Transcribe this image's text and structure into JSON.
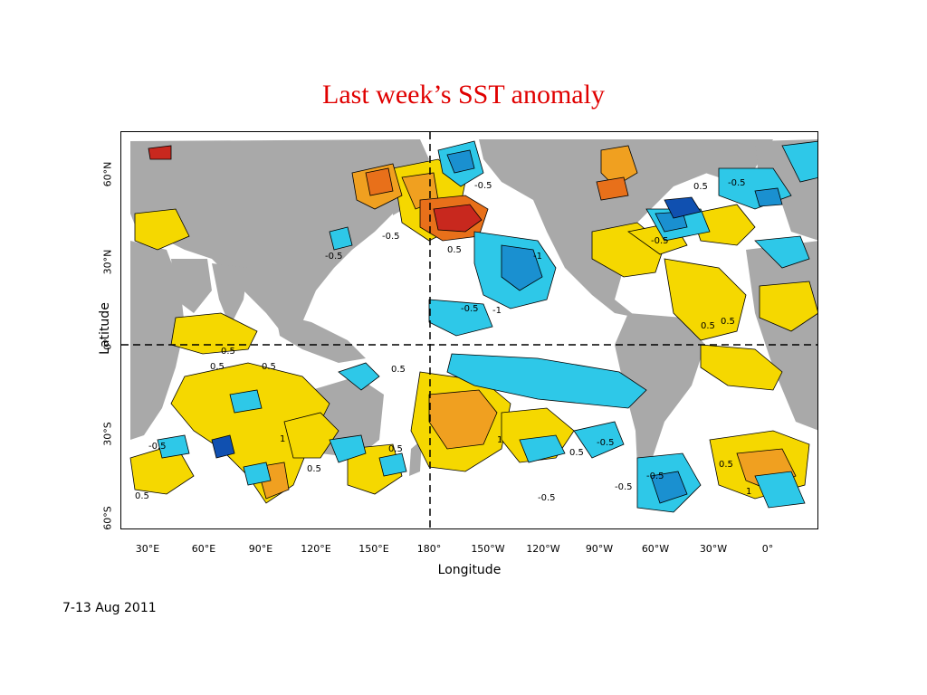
{
  "title": "Last week’s SST anomaly",
  "date_range": "7-13 Aug 2011",
  "x_axis": {
    "label": "Longitude",
    "ticks": [
      "30°E",
      "60°E",
      "90°E",
      "120°E",
      "150°E",
      "180°",
      "150°W",
      "120°W",
      "90°W",
      "60°W",
      "30°W",
      "0°"
    ]
  },
  "y_axis": {
    "label": "Latitude",
    "ticks": [
      "60°N",
      "30°N",
      "0°",
      "30°S",
      "60°S"
    ]
  },
  "contour_labels": [
    "-0.5",
    "0.5",
    "-1",
    "1"
  ],
  "colors": {
    "land": "#a9a9a9",
    "warm_weak": "#f5d800",
    "warm_mid": "#f0a020",
    "warm_strong": "#e8701a",
    "warm_extreme": "#c8281e",
    "cool_weak": "#2ec8e8",
    "cool_mid": "#1a90d0",
    "cool_strong": "#1050b0",
    "title": "#e00000"
  },
  "reference_lines": [
    "equator",
    "180° meridian"
  ]
}
